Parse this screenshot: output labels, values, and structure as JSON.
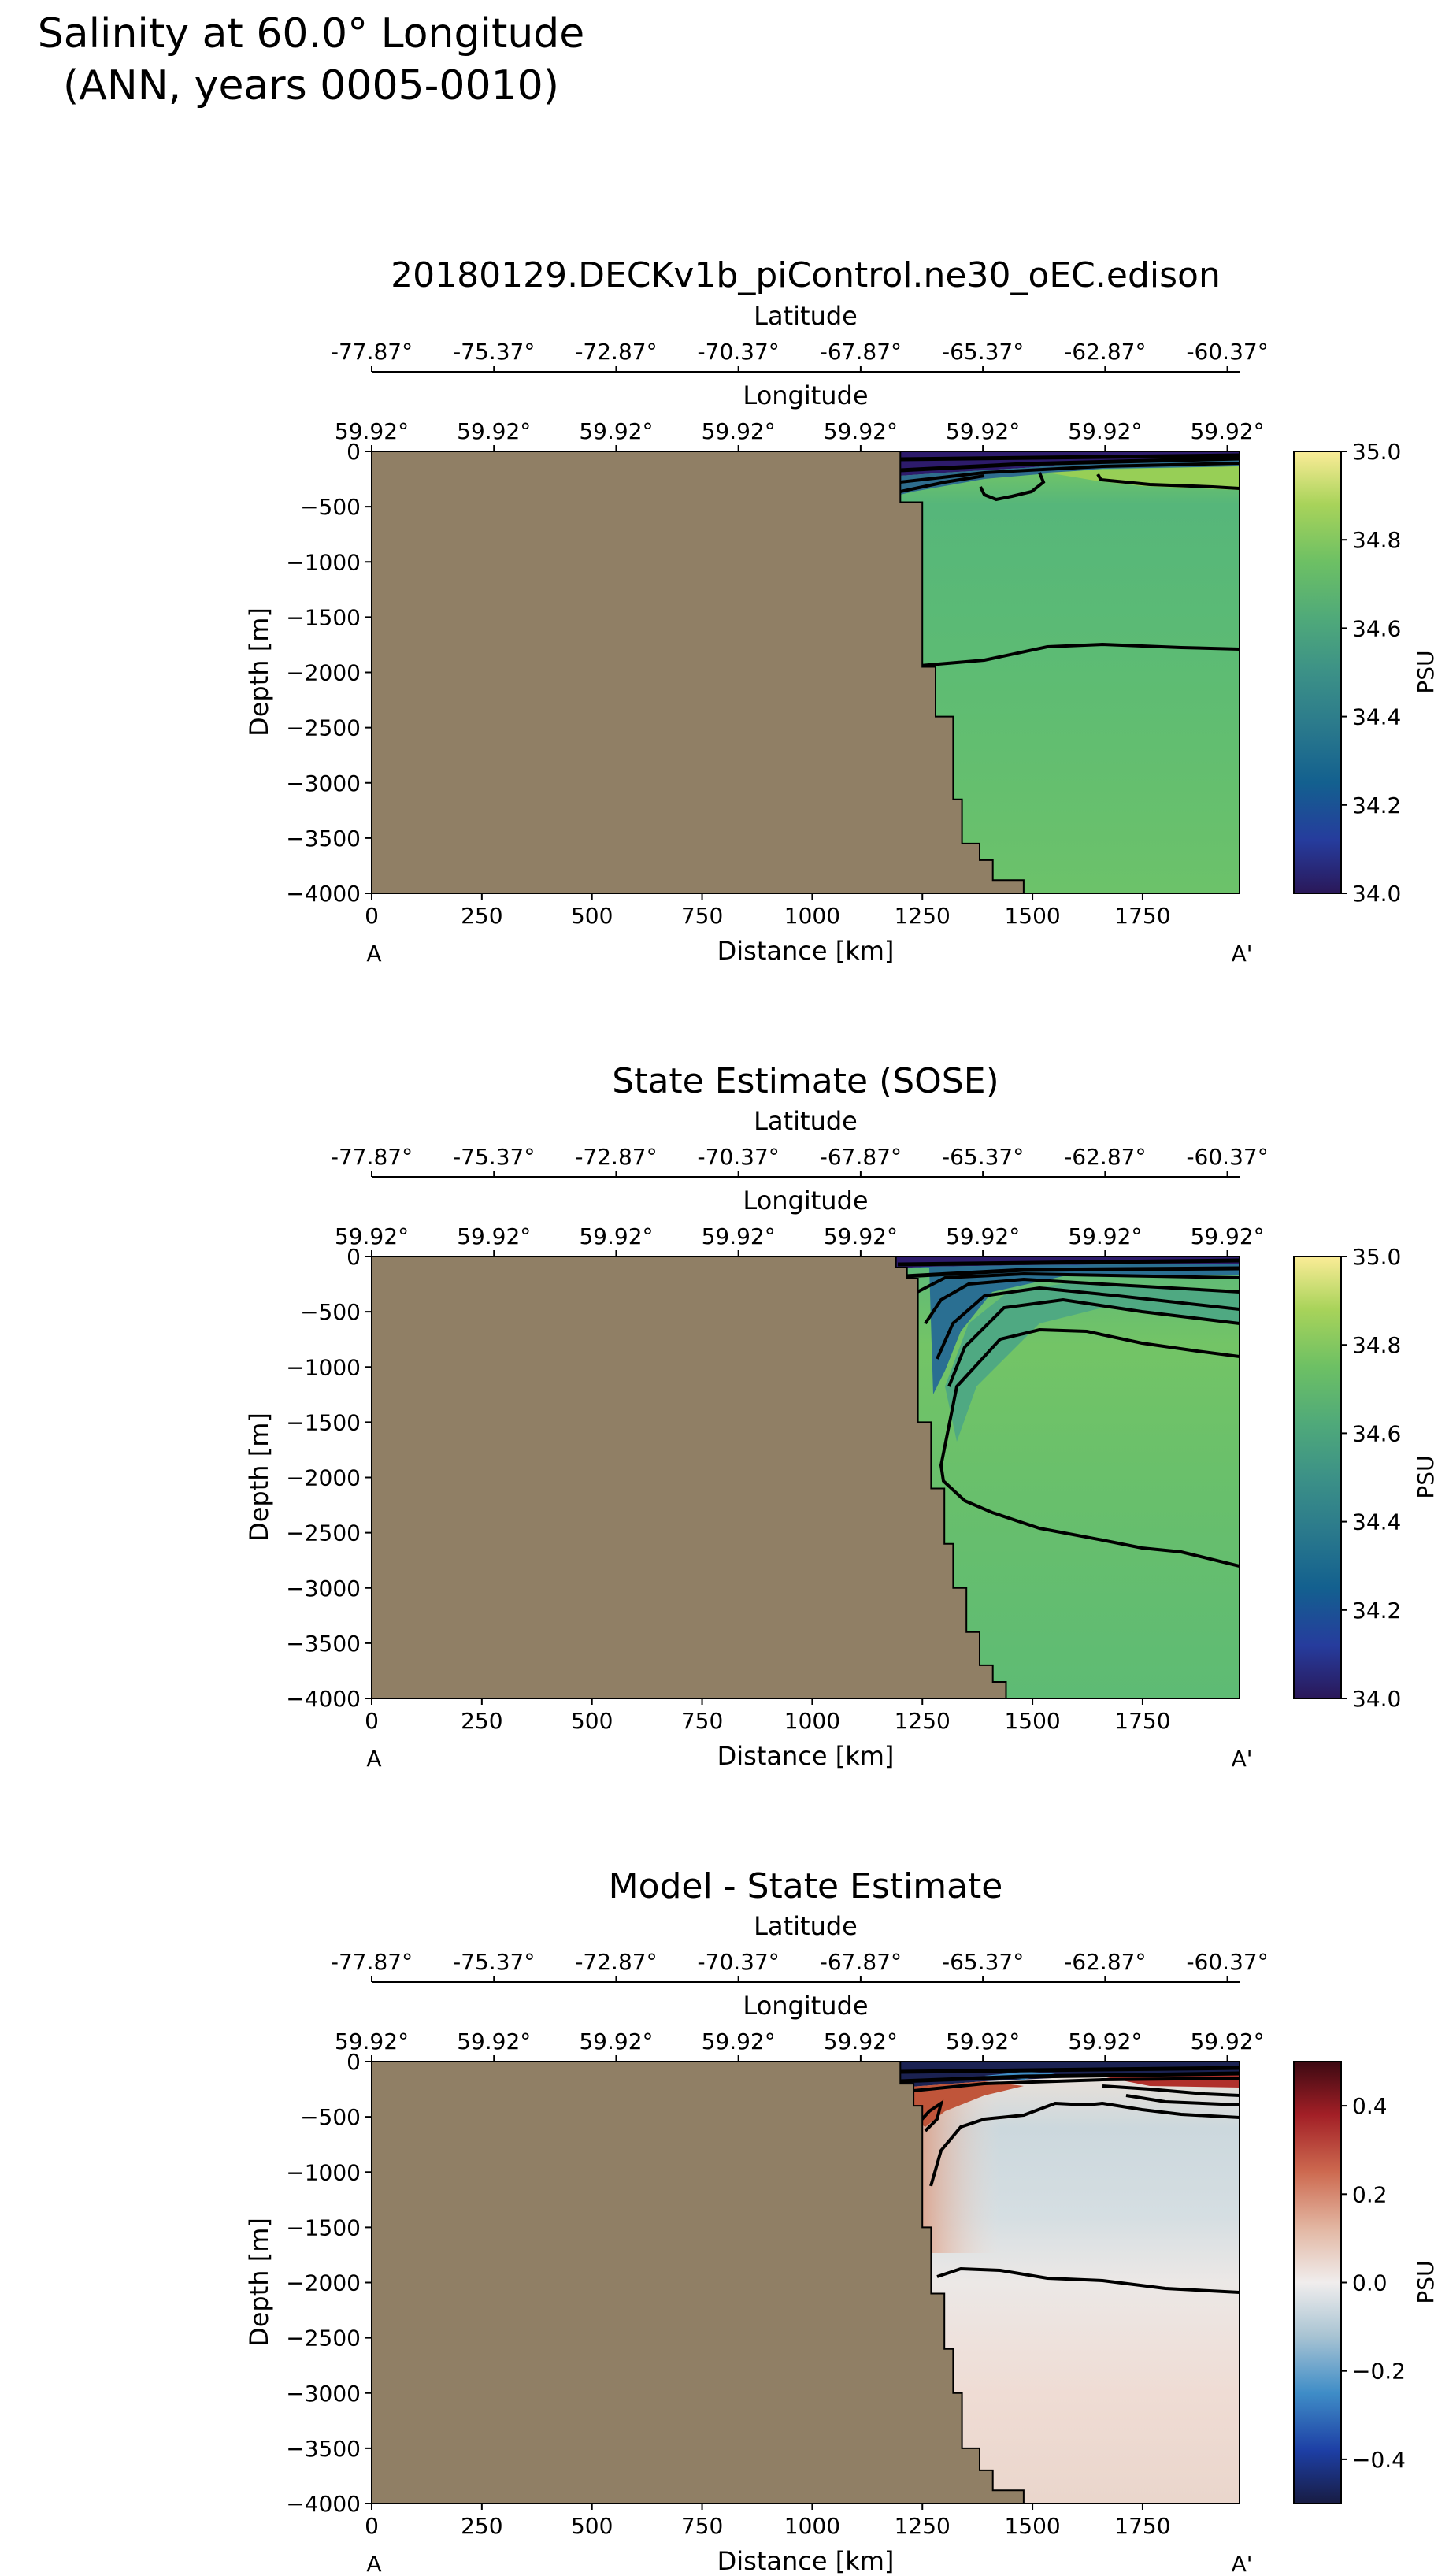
{
  "figure": {
    "suptitle_line1": "Salinity at 60.0° Longitude",
    "suptitle_line2": "(ANN, years 0005-0010)"
  },
  "colors": {
    "land": "#907f65",
    "contour": "#000000"
  },
  "chart_data": [
    {
      "type": "heatmap",
      "name": "model",
      "title": "20180129.DECKv1b_piControl.ne30_oEC.edison",
      "xlabel": "Distance [km]",
      "ylabel": "Depth [m]",
      "xlim": [
        0,
        1970
      ],
      "ylim": [
        -4000,
        0
      ],
      "xticks": [
        0,
        250,
        500,
        750,
        1000,
        1250,
        1500,
        1750
      ],
      "yticks": [
        0,
        -500,
        -1000,
        -1500,
        -2000,
        -2500,
        -3000,
        -3500,
        -4000
      ],
      "endpoint_labels": [
        "A",
        "A'"
      ],
      "secondary_axes": [
        {
          "label": "Latitude",
          "ticks": [
            "-77.87°",
            "-75.37°",
            "-72.87°",
            "-70.37°",
            "-67.87°",
            "-65.37°",
            "-62.87°",
            "-60.37°"
          ]
        },
        {
          "label": "Longitude",
          "ticks": [
            "59.92°",
            "59.92°",
            "59.92°",
            "59.92°",
            "59.92°",
            "59.92°",
            "59.92°",
            "59.92°"
          ]
        }
      ],
      "colorbar": {
        "label": "PSU",
        "range": [
          34.0,
          35.0
        ],
        "ticks": [
          "34.0",
          "34.2",
          "34.4",
          "34.6",
          "34.8",
          "35.0"
        ],
        "colormap": "haline"
      },
      "bathymetry_km_depth": [
        [
          1200,
          0
        ],
        [
          1200,
          -460
        ],
        [
          1250,
          -460
        ],
        [
          1250,
          -1950
        ],
        [
          1280,
          -1950
        ],
        [
          1280,
          -2400
        ],
        [
          1320,
          -2400
        ],
        [
          1320,
          -3150
        ],
        [
          1340,
          -3150
        ],
        [
          1340,
          -3550
        ],
        [
          1380,
          -3550
        ],
        [
          1380,
          -3700
        ],
        [
          1410,
          -3700
        ],
        [
          1410,
          -3880
        ],
        [
          1480,
          -3880
        ],
        [
          1480,
          -4000
        ]
      ],
      "dominant_values_psu": {
        "surface": 34.0,
        "upper": 34.75,
        "mid": 34.65,
        "deep": 34.68
      }
    },
    {
      "type": "heatmap",
      "name": "sose",
      "title": "State Estimate (SOSE)",
      "xlabel": "Distance [km]",
      "ylabel": "Depth [m]",
      "xlim": [
        0,
        1970
      ],
      "ylim": [
        -4000,
        0
      ],
      "xticks": [
        0,
        250,
        500,
        750,
        1000,
        1250,
        1500,
        1750
      ],
      "yticks": [
        0,
        -500,
        -1000,
        -1500,
        -2000,
        -2500,
        -3000,
        -3500,
        -4000
      ],
      "endpoint_labels": [
        "A",
        "A'"
      ],
      "secondary_axes": [
        {
          "label": "Latitude",
          "ticks": [
            "-77.87°",
            "-75.37°",
            "-72.87°",
            "-70.37°",
            "-67.87°",
            "-65.37°",
            "-62.87°",
            "-60.37°"
          ]
        },
        {
          "label": "Longitude",
          "ticks": [
            "59.92°",
            "59.92°",
            "59.92°",
            "59.92°",
            "59.92°",
            "59.92°",
            "59.92°",
            "59.92°"
          ]
        }
      ],
      "colorbar": {
        "label": "PSU",
        "range": [
          34.0,
          35.0
        ],
        "ticks": [
          "34.0",
          "34.2",
          "34.4",
          "34.6",
          "34.8",
          "35.0"
        ],
        "colormap": "haline"
      },
      "bathymetry_km_depth": [
        [
          1190,
          0
        ],
        [
          1190,
          -100
        ],
        [
          1215,
          -100
        ],
        [
          1215,
          -200
        ],
        [
          1240,
          -200
        ],
        [
          1240,
          -1500
        ],
        [
          1270,
          -1500
        ],
        [
          1270,
          -2100
        ],
        [
          1300,
          -2100
        ],
        [
          1300,
          -2600
        ],
        [
          1320,
          -2600
        ],
        [
          1320,
          -3000
        ],
        [
          1350,
          -3000
        ],
        [
          1350,
          -3400
        ],
        [
          1380,
          -3400
        ],
        [
          1380,
          -3700
        ],
        [
          1410,
          -3700
        ],
        [
          1410,
          -3850
        ],
        [
          1440,
          -3850
        ],
        [
          1440,
          -4000
        ]
      ],
      "dominant_values_psu": {
        "surface": 34.0,
        "upper": 34.72,
        "mid": 34.7,
        "deep": 34.68
      }
    },
    {
      "type": "heatmap",
      "name": "difference",
      "title": "Model - State Estimate",
      "xlabel": "Distance [km]",
      "ylabel": "Depth [m]",
      "xlim": [
        0,
        1970
      ],
      "ylim": [
        -4000,
        0
      ],
      "xticks": [
        0,
        250,
        500,
        750,
        1000,
        1250,
        1500,
        1750
      ],
      "yticks": [
        0,
        -500,
        -1000,
        -1500,
        -2000,
        -2500,
        -3000,
        -3500,
        -4000
      ],
      "endpoint_labels": [
        "A",
        "A'"
      ],
      "secondary_axes": [
        {
          "label": "Latitude",
          "ticks": [
            "-77.87°",
            "-75.37°",
            "-72.87°",
            "-70.37°",
            "-67.87°",
            "-65.37°",
            "-62.87°",
            "-60.37°"
          ]
        },
        {
          "label": "Longitude",
          "ticks": [
            "59.92°",
            "59.92°",
            "59.92°",
            "59.92°",
            "59.92°",
            "59.92°",
            "59.92°",
            "59.92°"
          ]
        }
      ],
      "colorbar": {
        "label": "PSU",
        "range": [
          -0.5,
          0.5
        ],
        "ticks": [
          "−0.4",
          "−0.2",
          "0.0",
          "0.2",
          "0.4"
        ],
        "tick_values": [
          -0.4,
          -0.2,
          0.0,
          0.2,
          0.4
        ],
        "colormap": "balance"
      },
      "bathymetry_km_depth": [
        [
          1200,
          0
        ],
        [
          1200,
          -200
        ],
        [
          1230,
          -200
        ],
        [
          1230,
          -400
        ],
        [
          1250,
          -400
        ],
        [
          1250,
          -1500
        ],
        [
          1270,
          -1500
        ],
        [
          1270,
          -2100
        ],
        [
          1300,
          -2100
        ],
        [
          1300,
          -2600
        ],
        [
          1320,
          -2600
        ],
        [
          1320,
          -3000
        ],
        [
          1340,
          -3000
        ],
        [
          1340,
          -3500
        ],
        [
          1380,
          -3500
        ],
        [
          1380,
          -3700
        ],
        [
          1410,
          -3700
        ],
        [
          1410,
          -3880
        ],
        [
          1480,
          -3880
        ],
        [
          1480,
          -4000
        ]
      ],
      "dominant_values_psu": {
        "surface": -0.4,
        "upper": -0.05,
        "mid": 0.0,
        "deep": 0.03
      }
    }
  ]
}
